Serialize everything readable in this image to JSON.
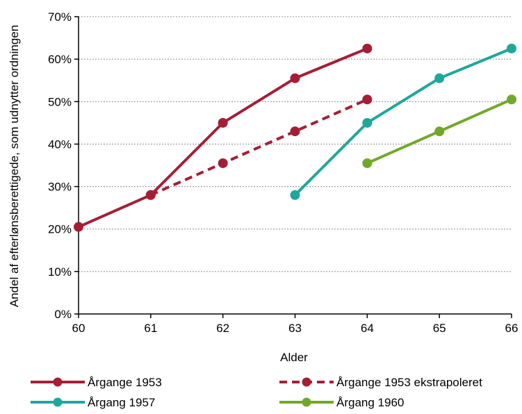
{
  "chart_data": {
    "type": "line",
    "title": "",
    "xlabel": "Alder",
    "ylabel": "Andel af efterlønsberettigede, som udnytter ordningen",
    "xlim": [
      60,
      66
    ],
    "ylim": [
      0,
      0.7
    ],
    "x_ticks": [
      60,
      61,
      62,
      63,
      64,
      65,
      66
    ],
    "x_tick_labels": [
      "60",
      "61",
      "62",
      "63",
      "64",
      "65",
      "66"
    ],
    "y_ticks": [
      0,
      0.1,
      0.2,
      0.3,
      0.4,
      0.5,
      0.6,
      0.7
    ],
    "y_tick_labels": [
      "0%",
      "10%",
      "20%",
      "30%",
      "40%",
      "50%",
      "60%",
      "70%"
    ],
    "grid": "horizontal",
    "legend_position": "bottom",
    "series": [
      {
        "name": "Årgange 1953",
        "color": "#A51E36",
        "style": "solid",
        "x": [
          60,
          61,
          62,
          63,
          64
        ],
        "y": [
          0.205,
          0.28,
          0.45,
          0.555,
          0.625
        ]
      },
      {
        "name": "Årgange 1953 ekstrapoleret",
        "color": "#A51E36",
        "style": "dashed",
        "x": [
          61,
          62,
          63,
          64
        ],
        "y": [
          0.28,
          0.355,
          0.43,
          0.505
        ]
      },
      {
        "name": "Årgang 1957",
        "color": "#1FA79B",
        "style": "solid",
        "x": [
          63,
          64,
          65,
          66
        ],
        "y": [
          0.28,
          0.45,
          0.555,
          0.625
        ]
      },
      {
        "name": "Årgang 1960",
        "color": "#72A82A",
        "style": "solid",
        "x": [
          64,
          65,
          66
        ],
        "y": [
          0.355,
          0.43,
          0.505
        ]
      }
    ]
  }
}
